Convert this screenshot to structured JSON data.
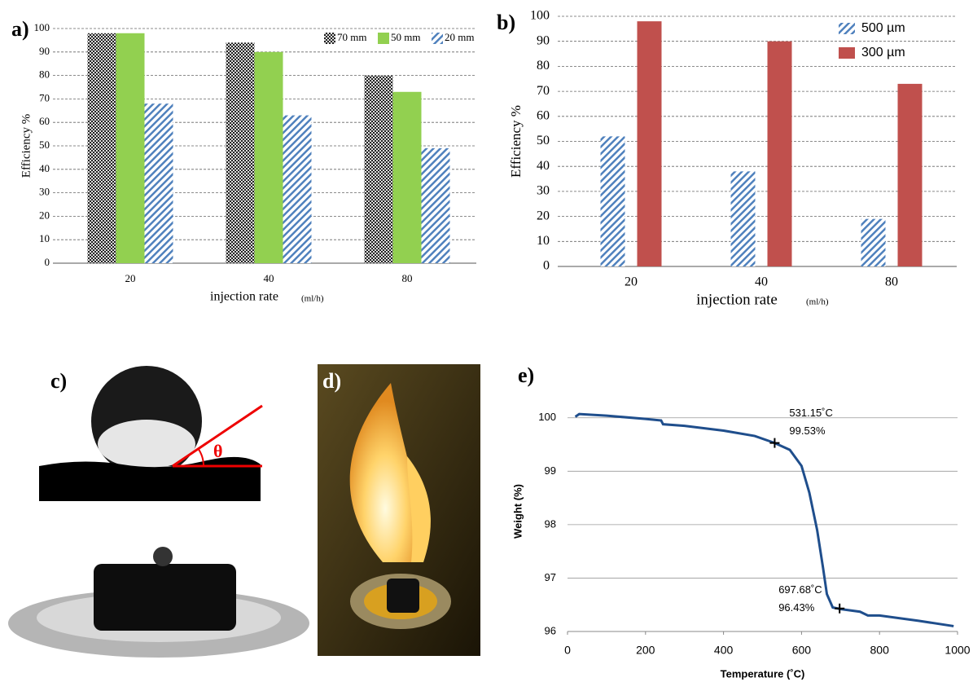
{
  "chart_data": [
    {
      "type": "bar",
      "panel_label": "a)",
      "y_label": "Efficiency %",
      "x_label": "injection rate",
      "x_label_unit": "(ml/h)",
      "categories": [
        "20",
        "40",
        "80"
      ],
      "series": [
        {
          "name": "70 mm",
          "color": "#333333",
          "pattern": "checker",
          "values": [
            98,
            94,
            80
          ]
        },
        {
          "name": "50 mm",
          "color": "#92d050",
          "values": [
            98,
            90,
            73
          ]
        },
        {
          "name": "20 mm",
          "color": "#4f81bd",
          "pattern": "hatch",
          "values": [
            68,
            63,
            49
          ]
        }
      ],
      "ylim": [
        0,
        100
      ],
      "yticks": [
        0,
        10,
        20,
        30,
        40,
        50,
        60,
        70,
        80,
        90,
        100
      ],
      "grid": true,
      "legend": "top-right"
    },
    {
      "type": "bar",
      "panel_label": "b)",
      "y_label": "Efficiency  %",
      "x_label": "injection rate",
      "x_label_unit": "(ml/h)",
      "categories": [
        "20",
        "40",
        "80"
      ],
      "series": [
        {
          "name": "500 µm",
          "color": "#4f81bd",
          "pattern": "hatch",
          "values": [
            52,
            38,
            19
          ]
        },
        {
          "name": "300 µm",
          "color": "#c0504d",
          "values": [
            98,
            90,
            73
          ]
        }
      ],
      "ylim": [
        0,
        100
      ],
      "yticks": [
        0,
        10,
        20,
        30,
        40,
        50,
        60,
        70,
        80,
        90,
        100
      ],
      "grid": true,
      "legend": "top-right"
    },
    {
      "type": "line",
      "panel_label": "e)",
      "y_label": "Weight (%)",
      "x_label": "Temperature (˚C)",
      "x": [
        20,
        30,
        100,
        200,
        240,
        245,
        300,
        400,
        480,
        531,
        570,
        600,
        620,
        640,
        655,
        665,
        680,
        700,
        750,
        770,
        800,
        900,
        990
      ],
      "series": [
        {
          "color": "#1f4e8c",
          "values": [
            100.02,
            100.07,
            100.04,
            99.98,
            99.95,
            99.88,
            99.85,
            99.76,
            99.66,
            99.53,
            99.4,
            99.1,
            98.6,
            97.9,
            97.2,
            96.7,
            96.45,
            96.42,
            96.37,
            96.3,
            96.3,
            96.2,
            96.1
          ]
        }
      ],
      "points": [
        {
          "x": 531.15,
          "y": 99.53,
          "labels": [
            "531.15˚C",
            "99.53%"
          ]
        },
        {
          "x": 697.68,
          "y": 96.43,
          "labels": [
            "697.68˚C",
            "96.43%"
          ]
        }
      ],
      "xlim": [
        0,
        1000
      ],
      "xticks": [
        0,
        200,
        400,
        600,
        800,
        1000
      ],
      "ylim": [
        96,
        100.5
      ],
      "yticks": [
        96,
        97,
        98,
        99,
        100
      ],
      "grid": true
    }
  ],
  "photos": [
    {
      "label": "c)",
      "angle_symbol": "θ"
    },
    {
      "label": "d)"
    }
  ]
}
